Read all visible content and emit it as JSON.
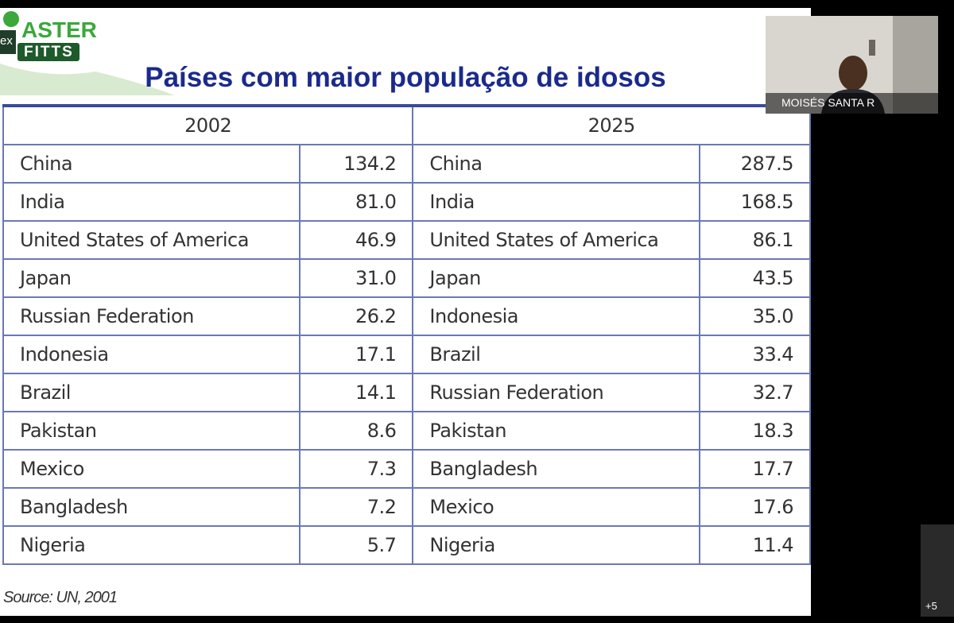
{
  "logo": {
    "badge": "ex",
    "word": "ASTER",
    "sub": "FITTS"
  },
  "slide": {
    "title": "Países com maior população de idosos",
    "table": {
      "headers": [
        "2002",
        "2025"
      ],
      "rows": [
        [
          "China",
          "134.2",
          "China",
          "287.5"
        ],
        [
          "India",
          "81.0",
          "India",
          "168.5"
        ],
        [
          "United States of America",
          "46.9",
          "United States of America",
          "86.1"
        ],
        [
          "Japan",
          "31.0",
          "Japan",
          "43.5"
        ],
        [
          "Russian Federation",
          "26.2",
          "Indonesia",
          "35.0"
        ],
        [
          "Indonesia",
          "17.1",
          "Brazil",
          "33.4"
        ],
        [
          "Brazil",
          "14.1",
          "Russian Federation",
          "32.7"
        ],
        [
          "Pakistan",
          "8.6",
          "Pakistan",
          "18.3"
        ],
        [
          "Mexico",
          "7.3",
          "Bangladesh",
          "17.7"
        ],
        [
          "Bangladesh",
          "7.2",
          "Mexico",
          "17.6"
        ],
        [
          "Nigeria",
          "5.7",
          "Nigeria",
          "11.4"
        ]
      ]
    },
    "source": "Source: UN, 2001"
  },
  "participant": {
    "name": "MOISÉS SANTA R"
  },
  "more": "+5"
}
